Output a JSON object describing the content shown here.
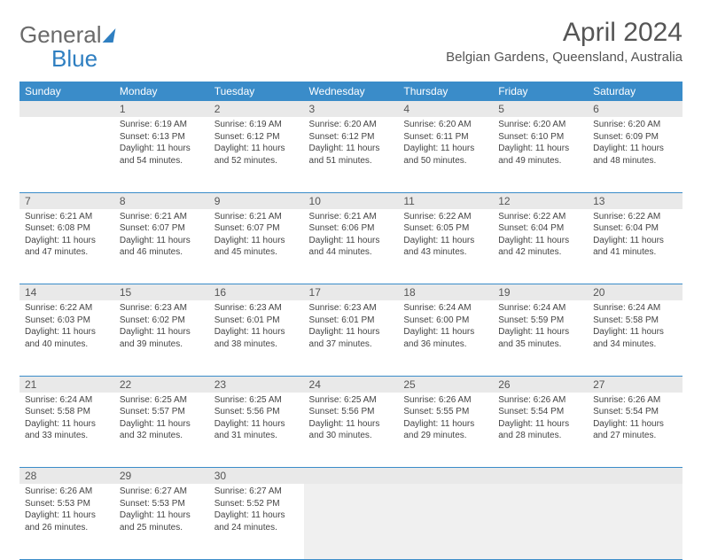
{
  "brand": {
    "part1": "General",
    "part2": "Blue"
  },
  "title": "April 2024",
  "location": "Belgian Gardens, Queensland, Australia",
  "colors": {
    "header_bg": "#3a8cc9",
    "header_text": "#ffffff",
    "daynum_bg": "#e9e9e9",
    "border": "#3a8cc9",
    "text": "#444444"
  },
  "weekdays": [
    "Sunday",
    "Monday",
    "Tuesday",
    "Wednesday",
    "Thursday",
    "Friday",
    "Saturday"
  ],
  "weeks": [
    [
      null,
      {
        "n": "1",
        "sr": "6:19 AM",
        "ss": "6:13 PM",
        "dl": "11 hours and 54 minutes."
      },
      {
        "n": "2",
        "sr": "6:19 AM",
        "ss": "6:12 PM",
        "dl": "11 hours and 52 minutes."
      },
      {
        "n": "3",
        "sr": "6:20 AM",
        "ss": "6:12 PM",
        "dl": "11 hours and 51 minutes."
      },
      {
        "n": "4",
        "sr": "6:20 AM",
        "ss": "6:11 PM",
        "dl": "11 hours and 50 minutes."
      },
      {
        "n": "5",
        "sr": "6:20 AM",
        "ss": "6:10 PM",
        "dl": "11 hours and 49 minutes."
      },
      {
        "n": "6",
        "sr": "6:20 AM",
        "ss": "6:09 PM",
        "dl": "11 hours and 48 minutes."
      }
    ],
    [
      {
        "n": "7",
        "sr": "6:21 AM",
        "ss": "6:08 PM",
        "dl": "11 hours and 47 minutes."
      },
      {
        "n": "8",
        "sr": "6:21 AM",
        "ss": "6:07 PM",
        "dl": "11 hours and 46 minutes."
      },
      {
        "n": "9",
        "sr": "6:21 AM",
        "ss": "6:07 PM",
        "dl": "11 hours and 45 minutes."
      },
      {
        "n": "10",
        "sr": "6:21 AM",
        "ss": "6:06 PM",
        "dl": "11 hours and 44 minutes."
      },
      {
        "n": "11",
        "sr": "6:22 AM",
        "ss": "6:05 PM",
        "dl": "11 hours and 43 minutes."
      },
      {
        "n": "12",
        "sr": "6:22 AM",
        "ss": "6:04 PM",
        "dl": "11 hours and 42 minutes."
      },
      {
        "n": "13",
        "sr": "6:22 AM",
        "ss": "6:04 PM",
        "dl": "11 hours and 41 minutes."
      }
    ],
    [
      {
        "n": "14",
        "sr": "6:22 AM",
        "ss": "6:03 PM",
        "dl": "11 hours and 40 minutes."
      },
      {
        "n": "15",
        "sr": "6:23 AM",
        "ss": "6:02 PM",
        "dl": "11 hours and 39 minutes."
      },
      {
        "n": "16",
        "sr": "6:23 AM",
        "ss": "6:01 PM",
        "dl": "11 hours and 38 minutes."
      },
      {
        "n": "17",
        "sr": "6:23 AM",
        "ss": "6:01 PM",
        "dl": "11 hours and 37 minutes."
      },
      {
        "n": "18",
        "sr": "6:24 AM",
        "ss": "6:00 PM",
        "dl": "11 hours and 36 minutes."
      },
      {
        "n": "19",
        "sr": "6:24 AM",
        "ss": "5:59 PM",
        "dl": "11 hours and 35 minutes."
      },
      {
        "n": "20",
        "sr": "6:24 AM",
        "ss": "5:58 PM",
        "dl": "11 hours and 34 minutes."
      }
    ],
    [
      {
        "n": "21",
        "sr": "6:24 AM",
        "ss": "5:58 PM",
        "dl": "11 hours and 33 minutes."
      },
      {
        "n": "22",
        "sr": "6:25 AM",
        "ss": "5:57 PM",
        "dl": "11 hours and 32 minutes."
      },
      {
        "n": "23",
        "sr": "6:25 AM",
        "ss": "5:56 PM",
        "dl": "11 hours and 31 minutes."
      },
      {
        "n": "24",
        "sr": "6:25 AM",
        "ss": "5:56 PM",
        "dl": "11 hours and 30 minutes."
      },
      {
        "n": "25",
        "sr": "6:26 AM",
        "ss": "5:55 PM",
        "dl": "11 hours and 29 minutes."
      },
      {
        "n": "26",
        "sr": "6:26 AM",
        "ss": "5:54 PM",
        "dl": "11 hours and 28 minutes."
      },
      {
        "n": "27",
        "sr": "6:26 AM",
        "ss": "5:54 PM",
        "dl": "11 hours and 27 minutes."
      }
    ],
    [
      {
        "n": "28",
        "sr": "6:26 AM",
        "ss": "5:53 PM",
        "dl": "11 hours and 26 minutes."
      },
      {
        "n": "29",
        "sr": "6:27 AM",
        "ss": "5:53 PM",
        "dl": "11 hours and 25 minutes."
      },
      {
        "n": "30",
        "sr": "6:27 AM",
        "ss": "5:52 PM",
        "dl": "11 hours and 24 minutes."
      },
      null,
      null,
      null,
      null
    ]
  ],
  "labels": {
    "sunrise": "Sunrise:",
    "sunset": "Sunset:",
    "daylight": "Daylight:"
  }
}
